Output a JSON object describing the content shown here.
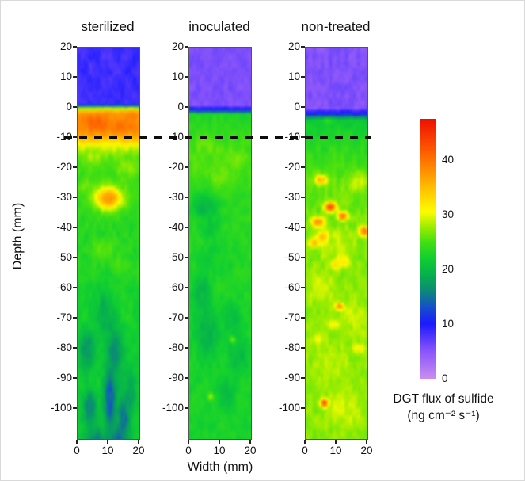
{
  "chart_data": {
    "type": "heatmap",
    "description": "Three vertical 2D DGT sulfide flux images versus sediment depth for sterilized, inoculated and non-treated treatments, with shared rainbow colorbar and a dashed reference line at -10 mm depth",
    "axes": {
      "depth_label": "Depth (mm)",
      "width_label": "Width (mm)",
      "depth_ticks": [
        20,
        10,
        0,
        -10,
        -20,
        -30,
        -40,
        -50,
        -60,
        -70,
        -80,
        -90,
        -100
      ],
      "width_ticks": [
        0,
        10,
        20
      ],
      "depth_range": [
        20,
        -110
      ],
      "width_range": [
        0,
        20
      ],
      "grid": false
    },
    "dashed_line_depth": -10,
    "colormap": {
      "min": 0,
      "max": 47.5,
      "stops": [
        [
          0,
          "#c98df2"
        ],
        [
          5,
          "#8a55fa"
        ],
        [
          10,
          "#1b1bff"
        ],
        [
          13,
          "#154fcd"
        ],
        [
          16,
          "#0c8879"
        ],
        [
          19,
          "#06b14d"
        ],
        [
          22,
          "#10cf31"
        ],
        [
          25,
          "#44e011"
        ],
        [
          28,
          "#a4ee00"
        ],
        [
          30.5,
          "#fdfc00"
        ],
        [
          34,
          "#ffcd00"
        ],
        [
          38,
          "#ff9100"
        ],
        [
          42,
          "#fc5700"
        ],
        [
          47.5,
          "#f01000"
        ]
      ]
    },
    "colorbar": {
      "ticks": [
        0,
        10,
        20,
        30,
        40
      ],
      "label_line1": "DGT flux of sulfide",
      "label_line2": "(ng cm⁻² s⁻¹)"
    },
    "panels": [
      {
        "title": "sterilized",
        "seed": 7,
        "noise": 1.15,
        "base_profile": [
          [
            20,
            8.4
          ],
          [
            1.2,
            8.4
          ],
          [
            0.4,
            18
          ],
          [
            -0.5,
            33
          ],
          [
            -2,
            37.5
          ],
          [
            -7,
            38.5
          ],
          [
            -9,
            37
          ],
          [
            -11,
            33.5
          ],
          [
            -13,
            29.5
          ],
          [
            -16,
            26
          ],
          [
            -22,
            24.5
          ],
          [
            -35,
            23.5
          ],
          [
            -55,
            23
          ],
          [
            -75,
            22
          ],
          [
            -110,
            21.5
          ]
        ],
        "spots": [
          [
            6,
            -5,
            4,
            2.5,
            41
          ],
          [
            14,
            -6,
            3,
            2,
            40
          ],
          [
            18,
            -2.5,
            2,
            1.5,
            39
          ],
          [
            5,
            -16,
            3,
            2,
            28
          ],
          [
            16,
            -20,
            3,
            2.5,
            27
          ],
          [
            10,
            -30,
            5.5,
            4.5,
            30
          ],
          [
            10,
            -30,
            3.2,
            2.8,
            37.5
          ],
          [
            3,
            -26,
            2,
            2,
            26
          ],
          [
            8,
            -47,
            4,
            3.5,
            25.5
          ],
          [
            14,
            -52,
            3,
            3,
            25
          ],
          [
            9,
            -68,
            3,
            8,
            19
          ],
          [
            3,
            -80,
            2.5,
            6,
            17.5
          ],
          [
            12,
            -82,
            2.5,
            8,
            16.5
          ],
          [
            10.5,
            -97,
            2,
            9,
            14
          ],
          [
            15,
            -103,
            2,
            7,
            15
          ],
          [
            4,
            -100,
            2,
            6,
            16
          ],
          [
            6,
            -112,
            3,
            5,
            15
          ],
          [
            13,
            -112,
            3,
            5,
            14
          ],
          [
            17,
            -95,
            2,
            6,
            18
          ]
        ]
      },
      {
        "title": "inoculated",
        "seed": 13,
        "noise": 1.0,
        "base_profile": [
          [
            20,
            5.6
          ],
          [
            0.6,
            5.6
          ],
          [
            -0.2,
            9.5
          ],
          [
            -1.2,
            14
          ],
          [
            -2.2,
            23
          ],
          [
            -12,
            24.5
          ],
          [
            -22,
            24.5
          ],
          [
            -32,
            23.5
          ],
          [
            -50,
            23.5
          ],
          [
            -70,
            22.8
          ],
          [
            -110,
            22.5
          ]
        ],
        "spots": [
          [
            6,
            -13,
            4,
            3,
            26
          ],
          [
            14,
            -17,
            4,
            3,
            26.5
          ],
          [
            10,
            -22,
            5,
            4,
            25.8
          ],
          [
            3,
            -20,
            3,
            3,
            25.5
          ],
          [
            5,
            -33,
            4,
            4,
            19.5
          ],
          [
            7,
            -40,
            3,
            4,
            21
          ],
          [
            9,
            -50,
            6,
            6,
            22
          ],
          [
            4,
            -62,
            3,
            8,
            20
          ],
          [
            6,
            -75,
            4,
            8,
            19.5
          ],
          [
            16,
            -82,
            3,
            6,
            20
          ],
          [
            12,
            -95,
            3,
            5,
            20.5
          ],
          [
            14,
            -70,
            3,
            6,
            20.5
          ],
          [
            7,
            -96,
            1.2,
            1.2,
            26.5
          ],
          [
            14,
            -77,
            1,
            1,
            26
          ]
        ]
      },
      {
        "title": "non-treated",
        "seed": 29,
        "noise": 1.25,
        "base_profile": [
          [
            20,
            5.4
          ],
          [
            -0.3,
            5.4
          ],
          [
            -1.3,
            9.5
          ],
          [
            -2.6,
            12
          ],
          [
            -3.6,
            21
          ],
          [
            -8,
            22.5
          ],
          [
            -15,
            24
          ],
          [
            -25,
            26
          ],
          [
            -45,
            26.8
          ],
          [
            -80,
            27.2
          ],
          [
            -110,
            27
          ]
        ],
        "spots": [
          [
            7,
            -4.5,
            1.5,
            1,
            23.5
          ],
          [
            17,
            -25,
            3,
            3,
            29
          ],
          [
            5,
            -24,
            2,
            1.5,
            35
          ],
          [
            8,
            -33,
            1.8,
            1.5,
            42
          ],
          [
            4,
            -38,
            2,
            1.5,
            37.5
          ],
          [
            12,
            -36,
            1.6,
            1.3,
            40
          ],
          [
            19,
            -41,
            1.6,
            1.6,
            40
          ],
          [
            3,
            -45,
            1.6,
            1.3,
            36
          ],
          [
            6,
            -43,
            2,
            1.8,
            43
          ],
          [
            12,
            -51,
            2.5,
            1.8,
            31.5
          ],
          [
            10,
            -52,
            2,
            1.5,
            33
          ],
          [
            10,
            -45,
            6,
            5,
            28.8
          ],
          [
            5,
            -60,
            5,
            6,
            28.8
          ],
          [
            15,
            -70,
            5,
            6,
            28.8
          ],
          [
            11,
            -66,
            1.3,
            1.1,
            38
          ],
          [
            9,
            -72,
            2,
            1.5,
            31
          ],
          [
            17,
            -80,
            2,
            1.5,
            31
          ],
          [
            4,
            -77,
            2,
            1.5,
            30
          ],
          [
            8,
            -85,
            6,
            6,
            28.6
          ],
          [
            12,
            -100,
            6,
            6,
            29
          ],
          [
            6,
            -98,
            1.2,
            1.2,
            42
          ]
        ]
      }
    ]
  }
}
